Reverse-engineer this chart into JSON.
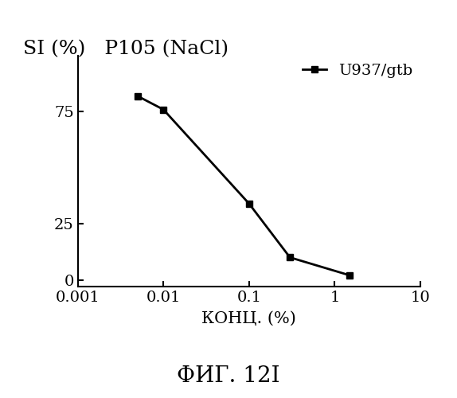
{
  "title": "SI (%)   P105 (NaCl)",
  "xlabel": "КОНЦ. (%)",
  "caption": "ФИГ. 12I",
  "legend_label": "U937/gtb",
  "x_data": [
    0.005,
    0.01,
    0.1,
    0.3,
    1.5
  ],
  "y_data": [
    82,
    76,
    34,
    10,
    2
  ],
  "yticks": [
    0,
    25,
    75
  ],
  "xtick_labels": [
    "0.001",
    "0.01",
    "0.1",
    "1",
    "10"
  ],
  "xtick_vals": [
    0.001,
    0.01,
    0.1,
    1,
    10
  ],
  "xlim": [
    0.001,
    10
  ],
  "ylim": [
    -3,
    100
  ],
  "line_color": "#000000",
  "marker": "s",
  "marker_size": 6,
  "linewidth": 2.0,
  "title_fontsize": 18,
  "axis_fontsize": 15,
  "tick_fontsize": 14,
  "legend_fontsize": 14,
  "caption_fontsize": 20
}
